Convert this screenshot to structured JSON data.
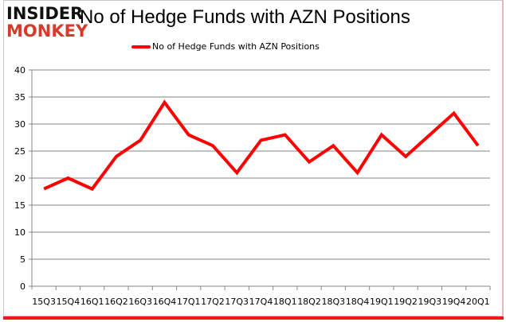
{
  "brand": {
    "line1": "INSIDER",
    "line2": "MONKEY"
  },
  "chart_data": {
    "type": "line",
    "title": "No of Hedge Funds with AZN Positions",
    "xlabel": "",
    "ylabel": "",
    "ylim": [
      0,
      40
    ],
    "yticks": [
      0,
      5,
      10,
      15,
      20,
      25,
      30,
      35,
      40
    ],
    "grid": true,
    "legend_position": "top",
    "categories": [
      "15Q3",
      "15Q4",
      "16Q1",
      "16Q2",
      "16Q3",
      "16Q4",
      "17Q1",
      "17Q2",
      "17Q3",
      "17Q4",
      "18Q1",
      "18Q2",
      "18Q3",
      "18Q4",
      "19Q1",
      "19Q2",
      "19Q3",
      "19Q4",
      "20Q1"
    ],
    "series": [
      {
        "name": "No of Hedge Funds with AZN Positions",
        "color": "#ff0000",
        "values": [
          18,
          20,
          18,
          24,
          27,
          34,
          28,
          26,
          21,
          27,
          28,
          23,
          26,
          21,
          28,
          24,
          28,
          32,
          26
        ]
      }
    ]
  }
}
